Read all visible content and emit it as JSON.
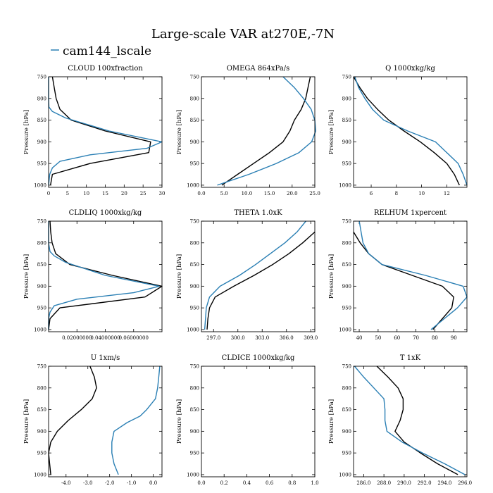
{
  "figure": {
    "title": "Large-scale VAR at270E,-7N",
    "legend": "cam144_lscale",
    "colors": {
      "ref": "#000000",
      "model": "#2a7fb4"
    }
  },
  "chart_data": [
    {
      "type": "line",
      "title": "CLOUD  100xfraction",
      "ylabel": "Pressure [hPa]",
      "xlim": [
        0,
        30
      ],
      "ylim": [
        1005,
        750
      ],
      "xticks": [
        0,
        5,
        10,
        15,
        20,
        25,
        30
      ],
      "xtick_labels": [
        "0",
        "5",
        "10",
        "15",
        "20",
        "25",
        "30"
      ],
      "yticks": [
        750,
        800,
        850,
        900,
        950,
        1000
      ],
      "series": [
        {
          "name": "ref",
          "y": [
            750,
            775,
            800,
            825,
            850,
            875,
            900,
            925,
            950,
            975,
            1000
          ],
          "values": [
            1.0,
            1.5,
            2.0,
            3.0,
            6.0,
            15.0,
            27.0,
            26.5,
            11.0,
            1.0,
            0.5
          ]
        },
        {
          "name": "cam144_lscale",
          "y": [
            750,
            800,
            820,
            830,
            845,
            875,
            900,
            915,
            930,
            945,
            960,
            975,
            1000
          ],
          "values": [
            0,
            0,
            0.1,
            1.0,
            4.5,
            16.0,
            30.0,
            26.0,
            11.0,
            3.0,
            1.0,
            0.3,
            0
          ]
        }
      ]
    },
    {
      "type": "line",
      "title": "OMEGA  864xPa/s",
      "ylabel": "Pressure [hPa]",
      "xlim": [
        0,
        25
      ],
      "ylim": [
        1005,
        750
      ],
      "xticks": [
        0,
        5,
        10,
        15,
        20,
        25
      ],
      "xtick_labels": [
        "0.0",
        "5.0",
        "10.0",
        "15.0",
        "20.0",
        "25.0"
      ],
      "yticks": [
        750,
        800,
        850,
        900,
        950,
        1000
      ],
      "series": [
        {
          "name": "ref",
          "y": [
            750,
            775,
            800,
            825,
            850,
            875,
            900,
            925,
            950,
            975,
            1000
          ],
          "values": [
            24.0,
            23.5,
            23.0,
            22.0,
            20.5,
            19.5,
            18.0,
            15.0,
            11.5,
            8.0,
            4.5
          ]
        },
        {
          "name": "cam144_lscale",
          "y": [
            750,
            775,
            800,
            825,
            850,
            875,
            900,
            925,
            950,
            975,
            1000
          ],
          "values": [
            18.0,
            20.5,
            22.5,
            24.2,
            25.0,
            25.2,
            24.3,
            21.5,
            16.5,
            10.5,
            3.5
          ]
        }
      ]
    },
    {
      "type": "line",
      "title": "Q  1000xkg/kg",
      "ylabel": "Pressure [hPa]",
      "xlim": [
        4.6,
        13.6
      ],
      "ylim": [
        1005,
        750
      ],
      "xticks": [
        6,
        8,
        10,
        12
      ],
      "xtick_labels": [
        "6",
        "8",
        "10",
        "12"
      ],
      "yticks": [
        750,
        800,
        850,
        900,
        950,
        1000
      ],
      "series": [
        {
          "name": "ref",
          "y": [
            750,
            775,
            800,
            825,
            850,
            875,
            900,
            925,
            950,
            975,
            1000
          ],
          "values": [
            4.6,
            5.1,
            5.7,
            6.5,
            7.4,
            8.6,
            9.9,
            11.0,
            12.0,
            12.6,
            13.0
          ]
        },
        {
          "name": "cam144_lscale",
          "y": [
            750,
            775,
            800,
            825,
            850,
            875,
            900,
            925,
            950,
            975,
            1000
          ],
          "values": [
            4.7,
            5.0,
            5.5,
            6.1,
            7.0,
            8.9,
            11.1,
            12.0,
            12.9,
            13.3,
            13.6
          ]
        }
      ]
    },
    {
      "type": "line",
      "title": "CLDLIQ  1000xkg/kg",
      "ylabel": "Pressure [hPa]",
      "xlim": [
        0,
        0.08
      ],
      "ylim": [
        1005,
        750
      ],
      "xticks": [
        0.02,
        0.04,
        0.06
      ],
      "xtick_labels": [
        "0.02000000",
        "0.04000000",
        "0.06000000"
      ],
      "yticks": [
        750,
        800,
        850,
        900,
        950,
        1000
      ],
      "series": [
        {
          "name": "ref",
          "y": [
            750,
            775,
            800,
            825,
            850,
            875,
            900,
            925,
            950,
            975,
            1000
          ],
          "values": [
            0.001,
            0.0015,
            0.0025,
            0.005,
            0.015,
            0.045,
            0.08,
            0.068,
            0.008,
            0.001,
            0
          ]
        },
        {
          "name": "cam144_lscale",
          "y": [
            750,
            800,
            820,
            830,
            845,
            875,
            900,
            915,
            930,
            945,
            960,
            975,
            1000
          ],
          "values": [
            0,
            0,
            0.001,
            0.004,
            0.012,
            0.04,
            0.078,
            0.06,
            0.02,
            0.004,
            0.001,
            0,
            0
          ]
        }
      ]
    },
    {
      "type": "line",
      "title": "THETA  1.0xK",
      "ylabel": "Pressure [hPa]",
      "xlim": [
        295.5,
        309.5
      ],
      "ylim": [
        1005,
        750
      ],
      "xticks": [
        297,
        300,
        303,
        306,
        309
      ],
      "xtick_labels": [
        "297.0",
        "300.0",
        "303.0",
        "306.0",
        "309.0"
      ],
      "yticks": [
        750,
        800,
        850,
        900,
        950,
        1000
      ],
      "series": [
        {
          "name": "ref",
          "y": [
            775,
            800,
            825,
            850,
            875,
            900,
            925,
            950,
            975,
            1000
          ],
          "values": [
            309.5,
            308.0,
            306.3,
            304.3,
            302.0,
            299.5,
            297.2,
            296.5,
            296.3,
            296.2
          ]
        },
        {
          "name": "cam144_lscale",
          "y": [
            750,
            775,
            800,
            825,
            850,
            875,
            900,
            925,
            950,
            975,
            1000
          ],
          "values": [
            308.4,
            307.3,
            305.8,
            304.0,
            302.2,
            300.2,
            297.8,
            296.5,
            296.1,
            296.0,
            295.9
          ]
        }
      ]
    },
    {
      "type": "line",
      "title": "RELHUM  1xpercent",
      "ylabel": "Pressure [hPa]",
      "xlim": [
        37,
        97
      ],
      "ylim": [
        1005,
        750
      ],
      "xticks": [
        40,
        50,
        60,
        70,
        80,
        90
      ],
      "xtick_labels": [
        "40",
        "50",
        "60",
        "70",
        "80",
        "90"
      ],
      "yticks": [
        750,
        800,
        850,
        900,
        950,
        1000
      ],
      "series": [
        {
          "name": "ref",
          "y": [
            775,
            800,
            825,
            850,
            875,
            900,
            925,
            950,
            975,
            1000
          ],
          "values": [
            37.0,
            40.5,
            45.0,
            52.0,
            68.0,
            84.0,
            90.0,
            89.0,
            84.0,
            79.0
          ]
        },
        {
          "name": "cam144_lscale",
          "y": [
            750,
            775,
            800,
            825,
            850,
            875,
            900,
            925,
            950,
            975,
            1000
          ],
          "values": [
            40.0,
            41.0,
            42.0,
            45.0,
            52.0,
            75.0,
            95.0,
            97.0,
            92.0,
            85.0,
            78.0
          ]
        }
      ]
    },
    {
      "type": "line",
      "title": "U  1xm/s",
      "ylabel": "Pressure [hPa]",
      "xlim": [
        -4.8,
        0.4
      ],
      "ylim": [
        1005,
        750
      ],
      "xticks": [
        -4,
        -3,
        -2,
        -1,
        0
      ],
      "xtick_labels": [
        "-4.0",
        "-3.0",
        "-2.0",
        "-1.0",
        "0.0"
      ],
      "yticks": [
        750,
        800,
        850,
        900,
        950,
        1000
      ],
      "series": [
        {
          "name": "ref",
          "y": [
            750,
            775,
            800,
            825,
            850,
            875,
            900,
            925,
            950,
            975,
            1000
          ],
          "values": [
            -2.9,
            -2.7,
            -2.6,
            -2.8,
            -3.3,
            -3.9,
            -4.4,
            -4.7,
            -4.8,
            -4.75,
            -4.7
          ]
        },
        {
          "name": "cam144_lscale",
          "y": [
            750,
            775,
            800,
            825,
            850,
            865,
            880,
            900,
            925,
            950,
            975,
            1000
          ],
          "values": [
            0.3,
            0.25,
            0.2,
            0.1,
            -0.3,
            -0.6,
            -1.2,
            -1.8,
            -1.9,
            -1.9,
            -1.8,
            -1.6
          ]
        }
      ]
    },
    {
      "type": "line",
      "title": "CLDICE  1000xkg/kg",
      "ylabel": "Pressure [hPa]",
      "xlim": [
        0,
        1
      ],
      "ylim": [
        1005,
        750
      ],
      "xticks": [
        0,
        0.2,
        0.4,
        0.6,
        0.8,
        1.0
      ],
      "xtick_labels": [
        "0.0",
        "0.2",
        "0.4",
        "0.6",
        "0.8",
        "1.0"
      ],
      "yticks": [
        750,
        800,
        850,
        900,
        950,
        1000
      ],
      "series": []
    },
    {
      "type": "line",
      "title": "T  1xK",
      "ylabel": "Pressure [hPa]",
      "xlim": [
        285,
        296.2
      ],
      "ylim": [
        1005,
        750
      ],
      "xticks": [
        286,
        288,
        290,
        292,
        294,
        296
      ],
      "xtick_labels": [
        "286.0",
        "288.0",
        "290.0",
        "292.0",
        "294.0",
        "296.0"
      ],
      "yticks": [
        750,
        800,
        850,
        900,
        950,
        1000
      ],
      "series": [
        {
          "name": "ref",
          "y": [
            750,
            775,
            800,
            825,
            850,
            875,
            900,
            925,
            950,
            975,
            1000
          ],
          "values": [
            287.3,
            288.4,
            289.4,
            289.9,
            289.9,
            289.6,
            289.1,
            290.0,
            291.6,
            293.3,
            295.3
          ]
        },
        {
          "name": "cam144_lscale",
          "y": [
            750,
            775,
            800,
            825,
            850,
            875,
            900,
            925,
            950,
            975,
            1000
          ],
          "values": [
            285.1,
            286.0,
            287.0,
            288.0,
            288.1,
            288.1,
            288.3,
            289.8,
            291.8,
            294.0,
            296.0
          ]
        }
      ]
    }
  ]
}
